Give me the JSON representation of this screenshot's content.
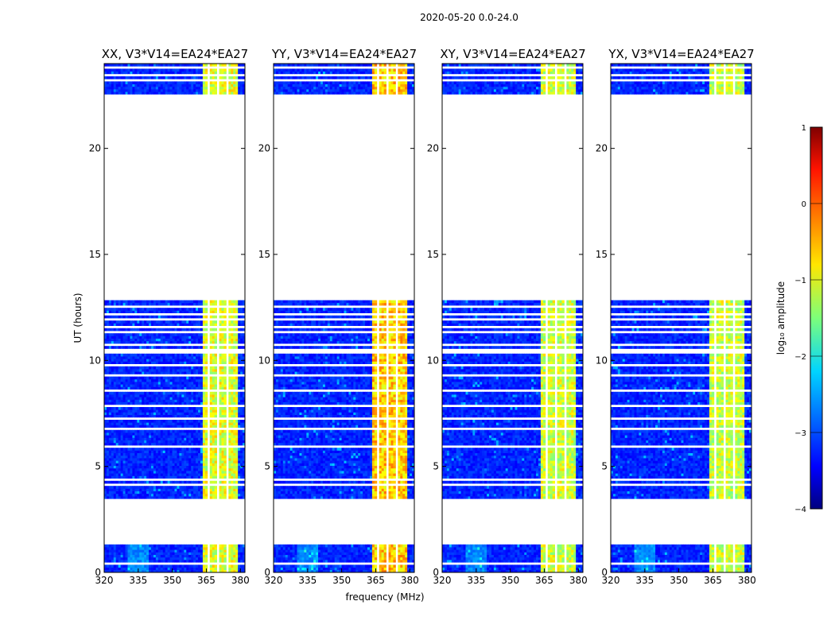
{
  "chart_data": {
    "type": "heatmap",
    "title": "2020-05-20 0.0-24.0",
    "xlabel": "frequency (MHz)",
    "ylabel": "UT (hours)",
    "xlim": [
      320,
      382
    ],
    "ylim": [
      0,
      24
    ],
    "x_ticks": [
      320,
      335,
      350,
      365,
      380
    ],
    "y_ticks": [
      0,
      5,
      10,
      15,
      20
    ],
    "data_gaps_hours": [
      [
        1.3,
        3.5
      ],
      [
        12.8,
        22.6
      ],
      [
        10.3,
        10.5
      ]
    ],
    "flagged_rows_hours": [
      0.4,
      4.1,
      4.4,
      5.9,
      6.8,
      7.3,
      7.9,
      8.6,
      9.3,
      9.8,
      10.7,
      11.3,
      11.6,
      11.9,
      12.2,
      12.5,
      23.2,
      23.45,
      23.8
    ],
    "rfi_band_mhz": [
      363,
      379
    ],
    "panels": [
      {
        "title": "XX, V3*V14=EA24*EA27",
        "intensity": 0.55
      },
      {
        "title": "YY, V3*V14=EA24*EA27",
        "intensity": 0.8
      },
      {
        "title": "XY, V3*V14=EA24*EA27",
        "intensity": 0.5
      },
      {
        "title": "YX, V3*V14=EA24*EA27",
        "intensity": 0.48
      }
    ],
    "colorbar": {
      "label": "log₁₀ amplitude",
      "range": [
        -4,
        1
      ],
      "ticks": [
        "1",
        "0",
        "−1",
        "−2",
        "−3",
        "−4"
      ],
      "colormap": "jet"
    }
  }
}
